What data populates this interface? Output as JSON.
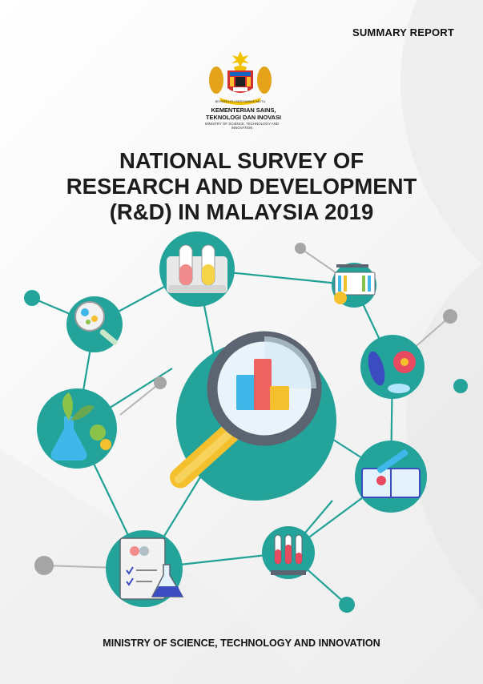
{
  "header": {
    "report_label": "SUMMARY REPORT"
  },
  "ministry": {
    "emblem_icon": "malaysia-coat-of-arms-icon",
    "name_ms_line1": "KEMENTERIAN SAINS,",
    "name_ms_line2": "TEKNOLOGI DAN INOVASI",
    "name_en": "MINISTRY OF SCIENCE, TECHNOLOGY AND INNOVATION"
  },
  "title": {
    "line1": "NATIONAL SURVEY OF",
    "line2": "RESEARCH AND DEVELOPMENT",
    "line3": "(R&D) IN MALAYSIA 2019"
  },
  "illustration": {
    "center_icon": "magnifying-glass-bar-chart-icon",
    "node_icons": [
      "test-tubes-icon",
      "magnifier-petri-dish-icon",
      "laboratory-bench-icon",
      "bacteria-virus-icon",
      "plant-in-flask-icon",
      "book-syringe-icon",
      "blood-samples-icon",
      "checklist-flask-icon"
    ],
    "colors": {
      "teal": "#24a39a",
      "line": "#21a196",
      "gray_node": "#a5a5a5",
      "yellow": "#f5c02e",
      "blue": "#3fb7e9",
      "red": "#ef5350"
    }
  },
  "footer": {
    "ministry_name": "MINISTRY OF SCIENCE, TECHNOLOGY AND INNOVATION"
  }
}
